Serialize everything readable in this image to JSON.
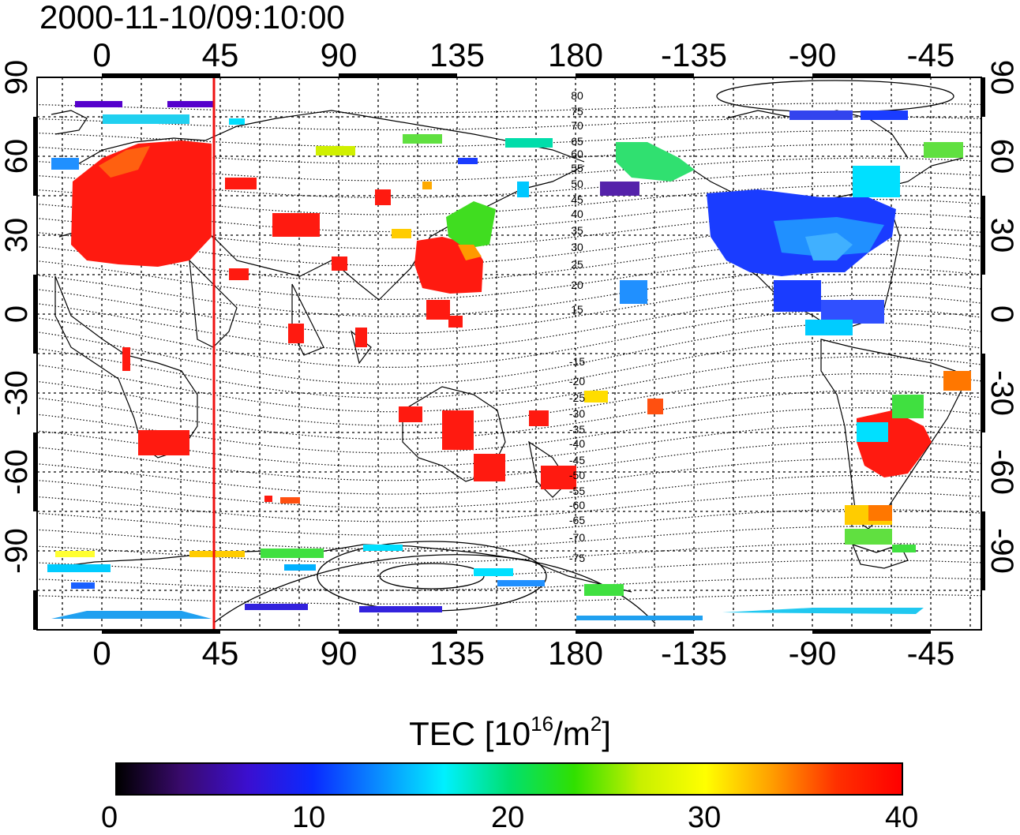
{
  "title": "2000-11-10/09:10:00",
  "map": {
    "lon_ticks_top": [
      "0",
      "45",
      "90",
      "135",
      "180",
      "-135",
      "-90",
      "-45"
    ],
    "lon_ticks_bottom": [
      "0",
      "45",
      "90",
      "135",
      "180",
      "-135",
      "-90",
      "-45"
    ],
    "lat_ticks_left": [
      "90",
      "60",
      "30",
      "0",
      "-30",
      "-60",
      "-90"
    ],
    "lat_ticks_right": [
      "90",
      "60",
      "30",
      "0",
      "-30",
      "-60",
      "-90"
    ],
    "contour_labels_north": [
      "80",
      "75",
      "70",
      "65",
      "60",
      "55",
      "50",
      "45",
      "40",
      "35",
      "30",
      "25",
      "20",
      "15"
    ],
    "contour_labels_south": [
      "-15",
      "-20",
      "-25",
      "-30",
      "-35",
      "-40",
      "-45",
      "-50",
      "-55",
      "-60",
      "-65",
      "-70",
      "-75"
    ],
    "marker_line_longitude": 45,
    "marker_color": "#ee1111"
  },
  "colorbar": {
    "title_prefix": "TEC  [10",
    "title_exp1": "16",
    "title_mid": "/m",
    "title_exp2": "2",
    "title_suffix": "]",
    "ticks": [
      "0",
      "10",
      "20",
      "30",
      "40"
    ],
    "min": 0,
    "max": 40,
    "colormap": [
      "#000000",
      "#3a0a6e",
      "#3b0fd0",
      "#0a2aff",
      "#0a8cff",
      "#00f0ff",
      "#00e070",
      "#30e000",
      "#c8f000",
      "#ffff00",
      "#ffa000",
      "#ff3000",
      "#ff0000"
    ]
  }
}
